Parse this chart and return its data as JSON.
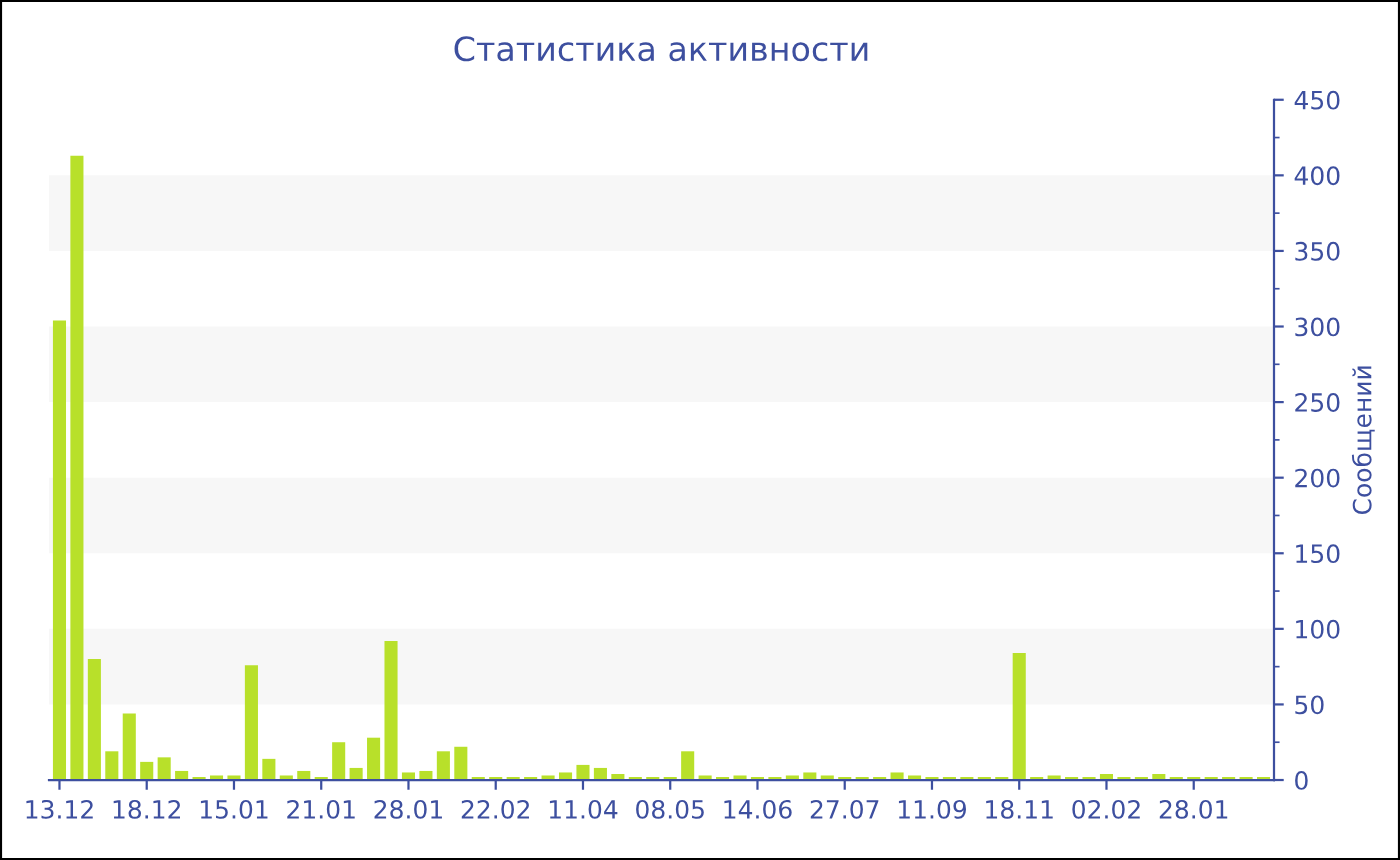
{
  "chart_data": {
    "type": "bar",
    "title": "Статистика активности",
    "y2label": "Сообщений",
    "categories": [
      "13.12",
      null,
      null,
      null,
      null,
      "18.12",
      null,
      null,
      null,
      null,
      "15.01",
      null,
      null,
      null,
      null,
      "21.01",
      null,
      null,
      null,
      null,
      "28.01",
      null,
      null,
      null,
      null,
      "22.02",
      null,
      null,
      null,
      null,
      "11.04",
      null,
      null,
      null,
      null,
      "08.05",
      null,
      null,
      null,
      null,
      "14.06",
      null,
      null,
      null,
      null,
      "27.07",
      null,
      null,
      null,
      null,
      "11.09",
      null,
      null,
      null,
      null,
      "18.11",
      null,
      null,
      null,
      null,
      "02.02",
      null,
      null,
      null,
      null,
      "28.01",
      null,
      null,
      null,
      null
    ],
    "series": [
      {
        "color": "#b8e02a",
        "axis": "y2",
        "values": [
          304,
          413,
          80,
          19,
          44,
          12,
          15,
          6,
          2,
          3,
          3,
          76,
          14,
          3,
          6,
          2,
          25,
          8,
          28,
          92,
          5,
          6,
          19,
          22,
          2,
          2,
          2,
          2,
          3,
          5,
          10,
          8,
          4,
          2,
          2,
          2,
          19,
          3,
          2,
          3,
          2,
          2,
          3,
          5,
          3,
          2,
          2,
          2,
          5,
          3,
          2,
          2,
          2,
          2,
          2,
          84,
          2,
          3,
          2,
          2,
          4,
          2,
          2,
          4,
          2,
          2,
          2,
          2,
          2,
          2
        ]
      }
    ],
    "y2lim": [
      0,
      450
    ],
    "y2ticks": [
      0,
      50,
      100,
      150,
      200,
      250,
      300,
      350,
      400,
      450
    ],
    "bands": [
      {
        "axis": "y2",
        "from": 50,
        "to": 100,
        "color": "#f7f7f7"
      },
      {
        "axis": "y2",
        "from": 150,
        "to": 200,
        "color": "#f7f7f7"
      },
      {
        "axis": "y2",
        "from": 250,
        "to": 300,
        "color": "#f7f7f7"
      },
      {
        "axis": "y2",
        "from": 350,
        "to": 400,
        "color": "#f7f7f7"
      }
    ],
    "grid": false,
    "legend": false
  }
}
